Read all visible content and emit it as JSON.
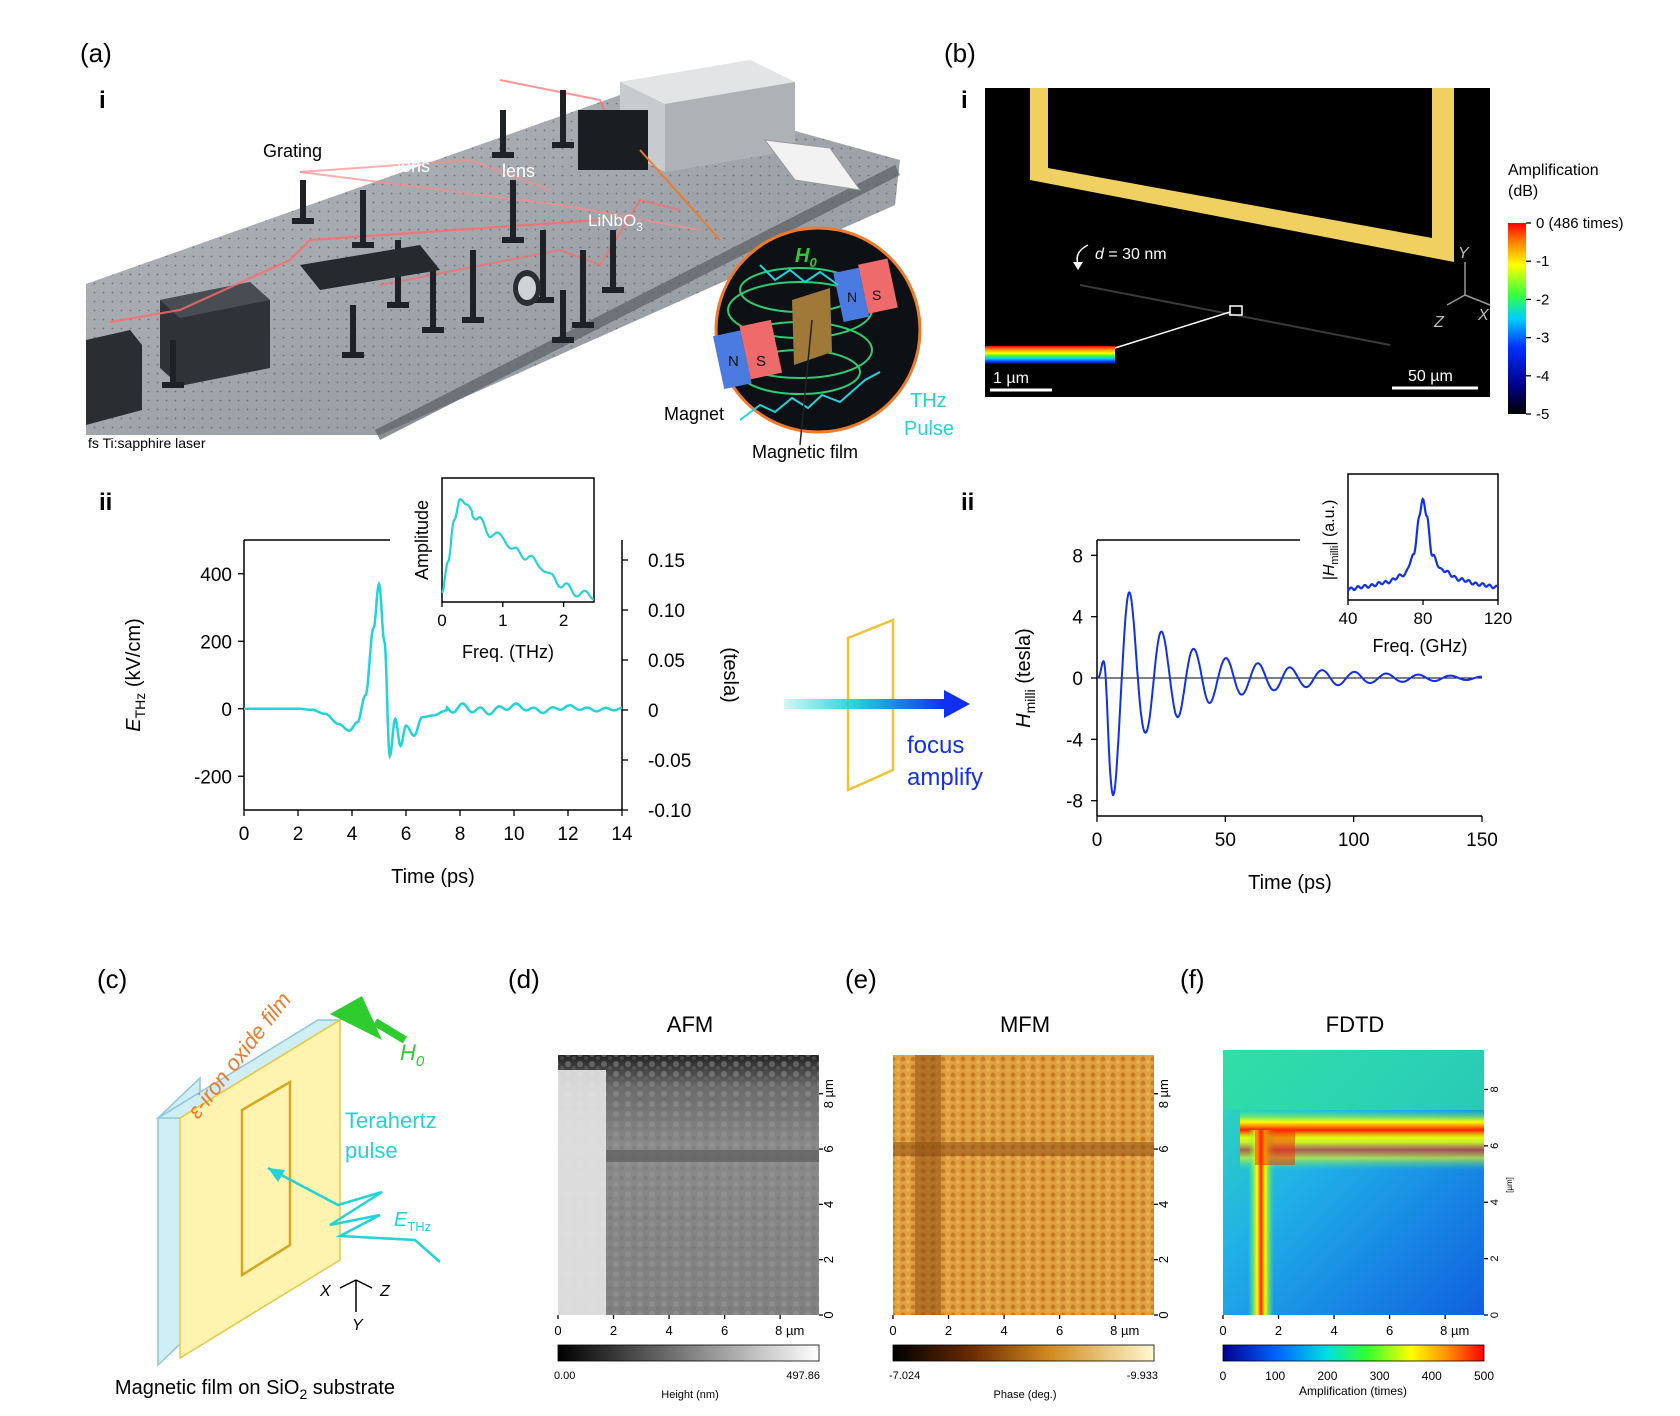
{
  "panels": {
    "a": {
      "label": "(a)",
      "sub_i": "i",
      "sub_ii": "ii",
      "annotations": {
        "grating": "Grating",
        "lens1": "lens",
        "lens2": "lens",
        "crystal": "LiNbO",
        "crystal_sub": "3",
        "laser": "fs Ti:sapphire laser",
        "magnet": "Magnet",
        "magnetic_film": "Magnetic film",
        "thz_line1": "THz",
        "thz_line2": "Pulse",
        "h0": "H",
        "h0_sub": "0",
        "pole_n": "N",
        "pole_s": "S"
      },
      "chart_ii": {
        "ylabel_main": "E",
        "ylabel_sub": "THz",
        "ylabel_unit": " (kV/cm)",
        "y2label": "(tesla)",
        "xlabel": "Time (ps)",
        "xticks": [
          "0",
          "2",
          "4",
          "6",
          "8",
          "10",
          "12",
          "14"
        ],
        "yticks": [
          "400",
          "200",
          "0",
          "-200"
        ],
        "y2ticks": [
          "0.15",
          "0.10",
          "0.05",
          "0",
          "-0.05",
          "-0.10"
        ],
        "inset": {
          "ylabel": "Amplitude",
          "xlabel": "Freq. (THz)",
          "xticks": [
            "0",
            "1",
            "2"
          ]
        }
      }
    },
    "b": {
      "label": "(b)",
      "sub_i": "i",
      "sub_ii": "ii",
      "d_label": "d",
      "d_value": " = 30 nm",
      "scale_small": "1 µm",
      "scale_large": "50 µm",
      "axes": {
        "y": "Y",
        "z": "Z",
        "x": "X"
      },
      "colorbar": {
        "title1": "Amplification",
        "title2": "(dB)",
        "ticks": [
          "0 (486 times)",
          "-1",
          "-2",
          "-3",
          "-4",
          "-5"
        ]
      },
      "chart_ii": {
        "ylabel_main": "H",
        "ylabel_sub": "milli",
        "ylabel_unit": " (tesla)",
        "xlabel": "Time (ps)",
        "xticks": [
          "0",
          "50",
          "100",
          "150"
        ],
        "yticks": [
          "8",
          "4",
          "0",
          "-4",
          "-8"
        ],
        "inset": {
          "ylabel_main": "|H",
          "ylabel_sub": "milli",
          "ylabel_unit": "| (a.u.)",
          "xlabel": "Freq. (GHz)",
          "xticks": [
            "40",
            "80",
            "120"
          ]
        }
      }
    },
    "middle": {
      "focus": "focus",
      "amplify": "amplify"
    },
    "c": {
      "label": "(c)",
      "film_label": "ε-iron oxide film",
      "h0": "H",
      "h0_sub": "0",
      "thz1": "Terahertz",
      "thz2": "pulse",
      "ethz": "E",
      "ethz_sub": "THz",
      "axes": {
        "x": "X",
        "z": "Z",
        "y": "Y"
      },
      "caption_main": "Magnetic film on SiO",
      "caption_sub": "2",
      "caption_end": " substrate"
    },
    "d": {
      "label": "(d)",
      "title": "AFM",
      "xticks": [
        "0",
        "2",
        "4",
        "6",
        "8 µm"
      ],
      "yticks": [
        "0",
        "2",
        "4",
        "6",
        "8 µm"
      ],
      "cbar_min": "0.00",
      "cbar_max": "497.86",
      "cbar_label": "Height (nm)"
    },
    "e": {
      "label": "(e)",
      "title": "MFM",
      "xticks": [
        "0",
        "2",
        "4",
        "6",
        "8 µm"
      ],
      "yticks": [
        "0",
        "2",
        "4",
        "6",
        "8 µm"
      ],
      "cbar_min": "-7.024",
      "cbar_max": "-9.933",
      "cbar_label": "Phase (deg.)"
    },
    "f": {
      "label": "(f)",
      "title": "FDTD",
      "xticks": [
        "0",
        "2",
        "4",
        "6",
        "8 µm"
      ],
      "yticks": [
        "0",
        "2",
        "4",
        "6",
        "8"
      ],
      "yunit": "[µm]",
      "cbar_ticks": [
        "0",
        "100",
        "200",
        "300",
        "400",
        "500"
      ],
      "cbar_label": "Amplification (times)"
    }
  },
  "colors": {
    "cyan": "#22d3d8",
    "blue": "#1030ee",
    "green": "#2ecc2e",
    "orange": "#f07a2a",
    "gold": "#f1c232"
  },
  "chart_data": [
    {
      "type": "line",
      "panel": "a-ii",
      "xlabel": "Time (ps)",
      "ylabel": "E_THz (kV/cm)",
      "y2label": "(tesla)",
      "xlim": [
        0,
        14
      ],
      "ylim": [
        -300,
        500
      ],
      "y2lim": [
        -0.1,
        0.17
      ],
      "x": [
        0,
        1,
        2,
        2.5,
        3,
        3.5,
        3.9,
        4.2,
        4.5,
        4.8,
        5.0,
        5.2,
        5.4,
        5.6,
        5.8,
        6.0,
        6.3,
        6.6,
        7.0,
        7.5,
        8.0,
        9,
        10,
        11,
        12,
        13,
        14
      ],
      "y": [
        0,
        0,
        0,
        -3,
        -15,
        -45,
        -65,
        -40,
        40,
        240,
        370,
        200,
        -140,
        -30,
        -110,
        -50,
        -80,
        -25,
        -20,
        -5,
        5,
        -8,
        8,
        -6,
        5,
        -3,
        0
      ]
    },
    {
      "type": "line",
      "panel": "a-ii-inset",
      "xlabel": "Freq. (THz)",
      "ylabel": "Amplitude",
      "xlim": [
        0,
        2.5
      ],
      "x": [
        0,
        0.1,
        0.2,
        0.3,
        0.4,
        0.6,
        0.8,
        1.0,
        1.2,
        1.4,
        1.6,
        1.8,
        2.0,
        2.2,
        2.5
      ],
      "y": [
        0.05,
        0.35,
        0.75,
        0.95,
        0.9,
        0.75,
        0.62,
        0.58,
        0.45,
        0.4,
        0.32,
        0.2,
        0.12,
        0.05,
        0.02
      ]
    },
    {
      "type": "line",
      "panel": "b-ii",
      "xlabel": "Time (ps)",
      "ylabel": "H_milli (tesla)",
      "xlim": [
        0,
        150
      ],
      "ylim": [
        -9,
        9
      ],
      "oscillation_frequency_GHz": 80,
      "x": [
        0,
        5,
        10,
        20,
        30,
        40,
        50,
        60,
        70,
        80,
        90,
        100,
        110,
        120,
        130,
        140,
        150
      ],
      "envelope": [
        0,
        8,
        6,
        3.5,
        2.6,
        1.8,
        1.3,
        1.0,
        0.8,
        0.6,
        0.5,
        0.4,
        0.3,
        0.25,
        0.2,
        0.15,
        0.1
      ]
    },
    {
      "type": "line",
      "panel": "b-ii-inset",
      "xlabel": "Freq. (GHz)",
      "ylabel": "|H_milli| (a.u.)",
      "xlim": [
        40,
        120
      ],
      "x": [
        40,
        50,
        60,
        70,
        75,
        78,
        80,
        82,
        85,
        90,
        100,
        110,
        120
      ],
      "y": [
        0.05,
        0.08,
        0.12,
        0.2,
        0.4,
        0.8,
        1.0,
        0.8,
        0.4,
        0.25,
        0.15,
        0.1,
        0.07
      ]
    }
  ]
}
